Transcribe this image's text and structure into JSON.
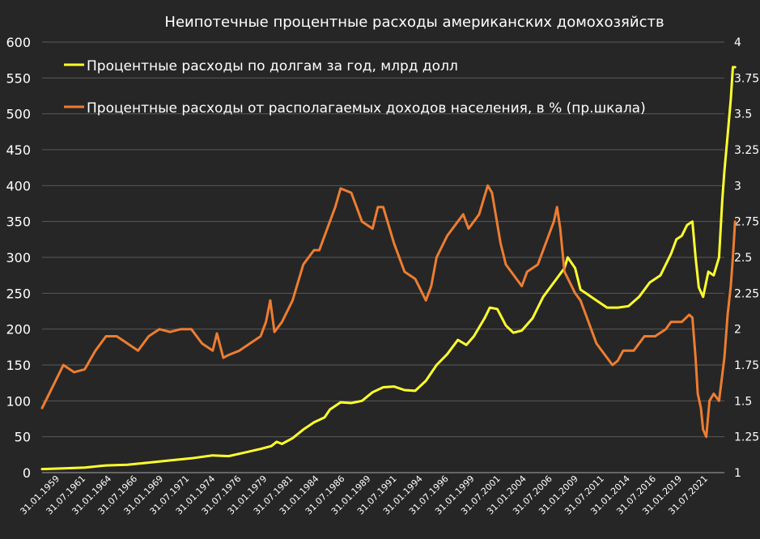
{
  "chart_data": {
    "type": "line",
    "title": "Неипотечные процентные расходы американских домохозяйств",
    "legend_placement": "top-left",
    "grid": "horizontal",
    "colors": {
      "background": "#262626",
      "grid": "#595959",
      "text": "#ffffff",
      "left_series": "#ffff2e",
      "right_series": "#ed7d31"
    },
    "left_axis": {
      "min": 0,
      "max": 600,
      "ticks": [
        "0",
        "50",
        "100",
        "150",
        "200",
        "250",
        "300",
        "350",
        "400",
        "450",
        "500",
        "550",
        "600"
      ]
    },
    "right_axis": {
      "min": 1,
      "max": 4,
      "ticks": [
        "1",
        "1.25",
        "1.5",
        "1.75",
        "2",
        "2.25",
        "2.5",
        "2.75",
        "3",
        "3.25",
        "3.5",
        "3.75",
        "4"
      ]
    },
    "x_range": [
      1959.0,
      2023.0
    ],
    "x_tick_labels": [
      "31.01.1959",
      "31.07.1961",
      "31.01.1964",
      "31.07.1966",
      "31.01.1969",
      "31.07.1971",
      "31.01.1974",
      "31.07.1976",
      "31.01.1979",
      "31.07.1981",
      "31.01.1984",
      "31.07.1986",
      "31.01.1989",
      "31.07.1991",
      "31.01.1994",
      "31.07.1996",
      "31.01.1999",
      "31.07.2001",
      "31.01.2004",
      "31.07.2006",
      "31.01.2009",
      "31.07.2011",
      "31.01.2014",
      "31.07.2016",
      "31.01.2019",
      "31.07.2021"
    ],
    "series": [
      {
        "name": "Процентные расходы по долгам за год, млрд долл",
        "axis": "left",
        "color": "#ffff2e",
        "points": [
          [
            1959.0,
            5
          ],
          [
            1961.0,
            6
          ],
          [
            1963.0,
            7
          ],
          [
            1965.0,
            10
          ],
          [
            1967.0,
            11
          ],
          [
            1969.0,
            14
          ],
          [
            1971.0,
            17
          ],
          [
            1973.0,
            20
          ],
          [
            1975.0,
            24
          ],
          [
            1976.5,
            23
          ],
          [
            1978.0,
            28
          ],
          [
            1979.5,
            33
          ],
          [
            1980.5,
            37
          ],
          [
            1981.0,
            43
          ],
          [
            1981.5,
            40
          ],
          [
            1982.5,
            48
          ],
          [
            1983.5,
            60
          ],
          [
            1984.5,
            70
          ],
          [
            1985.5,
            77
          ],
          [
            1986.0,
            88
          ],
          [
            1987.0,
            98
          ],
          [
            1988.0,
            97
          ],
          [
            1989.0,
            100
          ],
          [
            1990.0,
            112
          ],
          [
            1991.0,
            119
          ],
          [
            1992.0,
            120
          ],
          [
            1993.0,
            115
          ],
          [
            1994.0,
            114
          ],
          [
            1995.0,
            128
          ],
          [
            1996.0,
            150
          ],
          [
            1997.0,
            165
          ],
          [
            1998.0,
            185
          ],
          [
            1998.8,
            178
          ],
          [
            1999.5,
            190
          ],
          [
            2000.5,
            215
          ],
          [
            2001.0,
            230
          ],
          [
            2001.7,
            228
          ],
          [
            2002.5,
            205
          ],
          [
            2003.2,
            195
          ],
          [
            2004.0,
            198
          ],
          [
            2005.0,
            215
          ],
          [
            2006.0,
            245
          ],
          [
            2007.0,
            265
          ],
          [
            2008.0,
            285
          ],
          [
            2008.3,
            300
          ],
          [
            2009.0,
            285
          ],
          [
            2009.5,
            255
          ],
          [
            2010.0,
            250
          ],
          [
            2011.0,
            240
          ],
          [
            2012.0,
            230
          ],
          [
            2013.0,
            230
          ],
          [
            2014.0,
            232
          ],
          [
            2015.0,
            245
          ],
          [
            2016.0,
            265
          ],
          [
            2017.0,
            275
          ],
          [
            2018.0,
            305
          ],
          [
            2018.5,
            325
          ],
          [
            2019.0,
            330
          ],
          [
            2019.5,
            345
          ],
          [
            2020.0,
            350
          ],
          [
            2020.3,
            300
          ],
          [
            2020.6,
            258
          ],
          [
            2021.0,
            245
          ],
          [
            2021.5,
            280
          ],
          [
            2022.0,
            275
          ],
          [
            2022.5,
            300
          ],
          [
            2022.8,
            380
          ],
          [
            2023.0,
            420
          ],
          [
            2023.3,
            470
          ],
          [
            2023.6,
            520
          ],
          [
            2023.8,
            565
          ],
          [
            2024.0,
            565
          ]
        ]
      },
      {
        "name": "Процентные расходы от располагаемых доходов населения, в % (пр.шкала)",
        "axis": "right",
        "color": "#ed7d31",
        "points": [
          [
            1959.0,
            1.45
          ],
          [
            1960.0,
            1.6
          ],
          [
            1961.0,
            1.75
          ],
          [
            1962.0,
            1.7
          ],
          [
            1963.0,
            1.72
          ],
          [
            1964.0,
            1.85
          ],
          [
            1965.0,
            1.95
          ],
          [
            1966.0,
            1.95
          ],
          [
            1967.0,
            1.9
          ],
          [
            1968.0,
            1.85
          ],
          [
            1969.0,
            1.95
          ],
          [
            1970.0,
            2.0
          ],
          [
            1971.0,
            1.98
          ],
          [
            1972.0,
            2.0
          ],
          [
            1973.0,
            2.0
          ],
          [
            1974.0,
            1.9
          ],
          [
            1975.0,
            1.85
          ],
          [
            1975.4,
            1.97
          ],
          [
            1976.0,
            1.8
          ],
          [
            1976.5,
            1.82
          ],
          [
            1977.5,
            1.85
          ],
          [
            1978.5,
            1.9
          ],
          [
            1979.5,
            1.95
          ],
          [
            1980.0,
            2.05
          ],
          [
            1980.4,
            2.2
          ],
          [
            1980.8,
            1.98
          ],
          [
            1981.5,
            2.05
          ],
          [
            1982.5,
            2.2
          ],
          [
            1983.5,
            2.45
          ],
          [
            1984.5,
            2.55
          ],
          [
            1985.0,
            2.55
          ],
          [
            1986.0,
            2.75
          ],
          [
            1986.5,
            2.85
          ],
          [
            1987.0,
            2.98
          ],
          [
            1988.0,
            2.95
          ],
          [
            1988.5,
            2.85
          ],
          [
            1989.0,
            2.75
          ],
          [
            1990.0,
            2.7
          ],
          [
            1990.5,
            2.85
          ],
          [
            1991.0,
            2.85
          ],
          [
            1992.0,
            2.6
          ],
          [
            1993.0,
            2.4
          ],
          [
            1994.0,
            2.35
          ],
          [
            1995.0,
            2.2
          ],
          [
            1995.5,
            2.3
          ],
          [
            1996.0,
            2.5
          ],
          [
            1997.0,
            2.65
          ],
          [
            1998.0,
            2.75
          ],
          [
            1998.5,
            2.8
          ],
          [
            1999.0,
            2.7
          ],
          [
            2000.0,
            2.8
          ],
          [
            2000.8,
            3.0
          ],
          [
            2001.2,
            2.95
          ],
          [
            2002.0,
            2.6
          ],
          [
            2002.5,
            2.45
          ],
          [
            2003.5,
            2.35
          ],
          [
            2004.0,
            2.3
          ],
          [
            2004.5,
            2.4
          ],
          [
            2005.5,
            2.45
          ],
          [
            2006.0,
            2.55
          ],
          [
            2006.5,
            2.65
          ],
          [
            2007.0,
            2.75
          ],
          [
            2007.3,
            2.85
          ],
          [
            2007.6,
            2.7
          ],
          [
            2008.0,
            2.4
          ],
          [
            2009.0,
            2.25
          ],
          [
            2009.5,
            2.2
          ],
          [
            2010.0,
            2.1
          ],
          [
            2010.5,
            2.0
          ],
          [
            2011.0,
            1.9
          ],
          [
            2012.0,
            1.8
          ],
          [
            2012.5,
            1.75
          ],
          [
            2013.0,
            1.78
          ],
          [
            2013.5,
            1.85
          ],
          [
            2014.5,
            1.85
          ],
          [
            2015.5,
            1.95
          ],
          [
            2016.5,
            1.95
          ],
          [
            2017.5,
            2.0
          ],
          [
            2018.0,
            2.05
          ],
          [
            2019.0,
            2.05
          ],
          [
            2019.7,
            2.1
          ],
          [
            2020.0,
            2.08
          ],
          [
            2020.3,
            1.8
          ],
          [
            2020.5,
            1.55
          ],
          [
            2020.8,
            1.45
          ],
          [
            2021.0,
            1.3
          ],
          [
            2021.3,
            1.25
          ],
          [
            2021.6,
            1.5
          ],
          [
            2022.0,
            1.55
          ],
          [
            2022.5,
            1.5
          ],
          [
            2023.0,
            1.8
          ],
          [
            2023.3,
            2.1
          ],
          [
            2023.6,
            2.3
          ],
          [
            2023.8,
            2.5
          ],
          [
            2024.0,
            2.75
          ]
        ]
      }
    ]
  }
}
